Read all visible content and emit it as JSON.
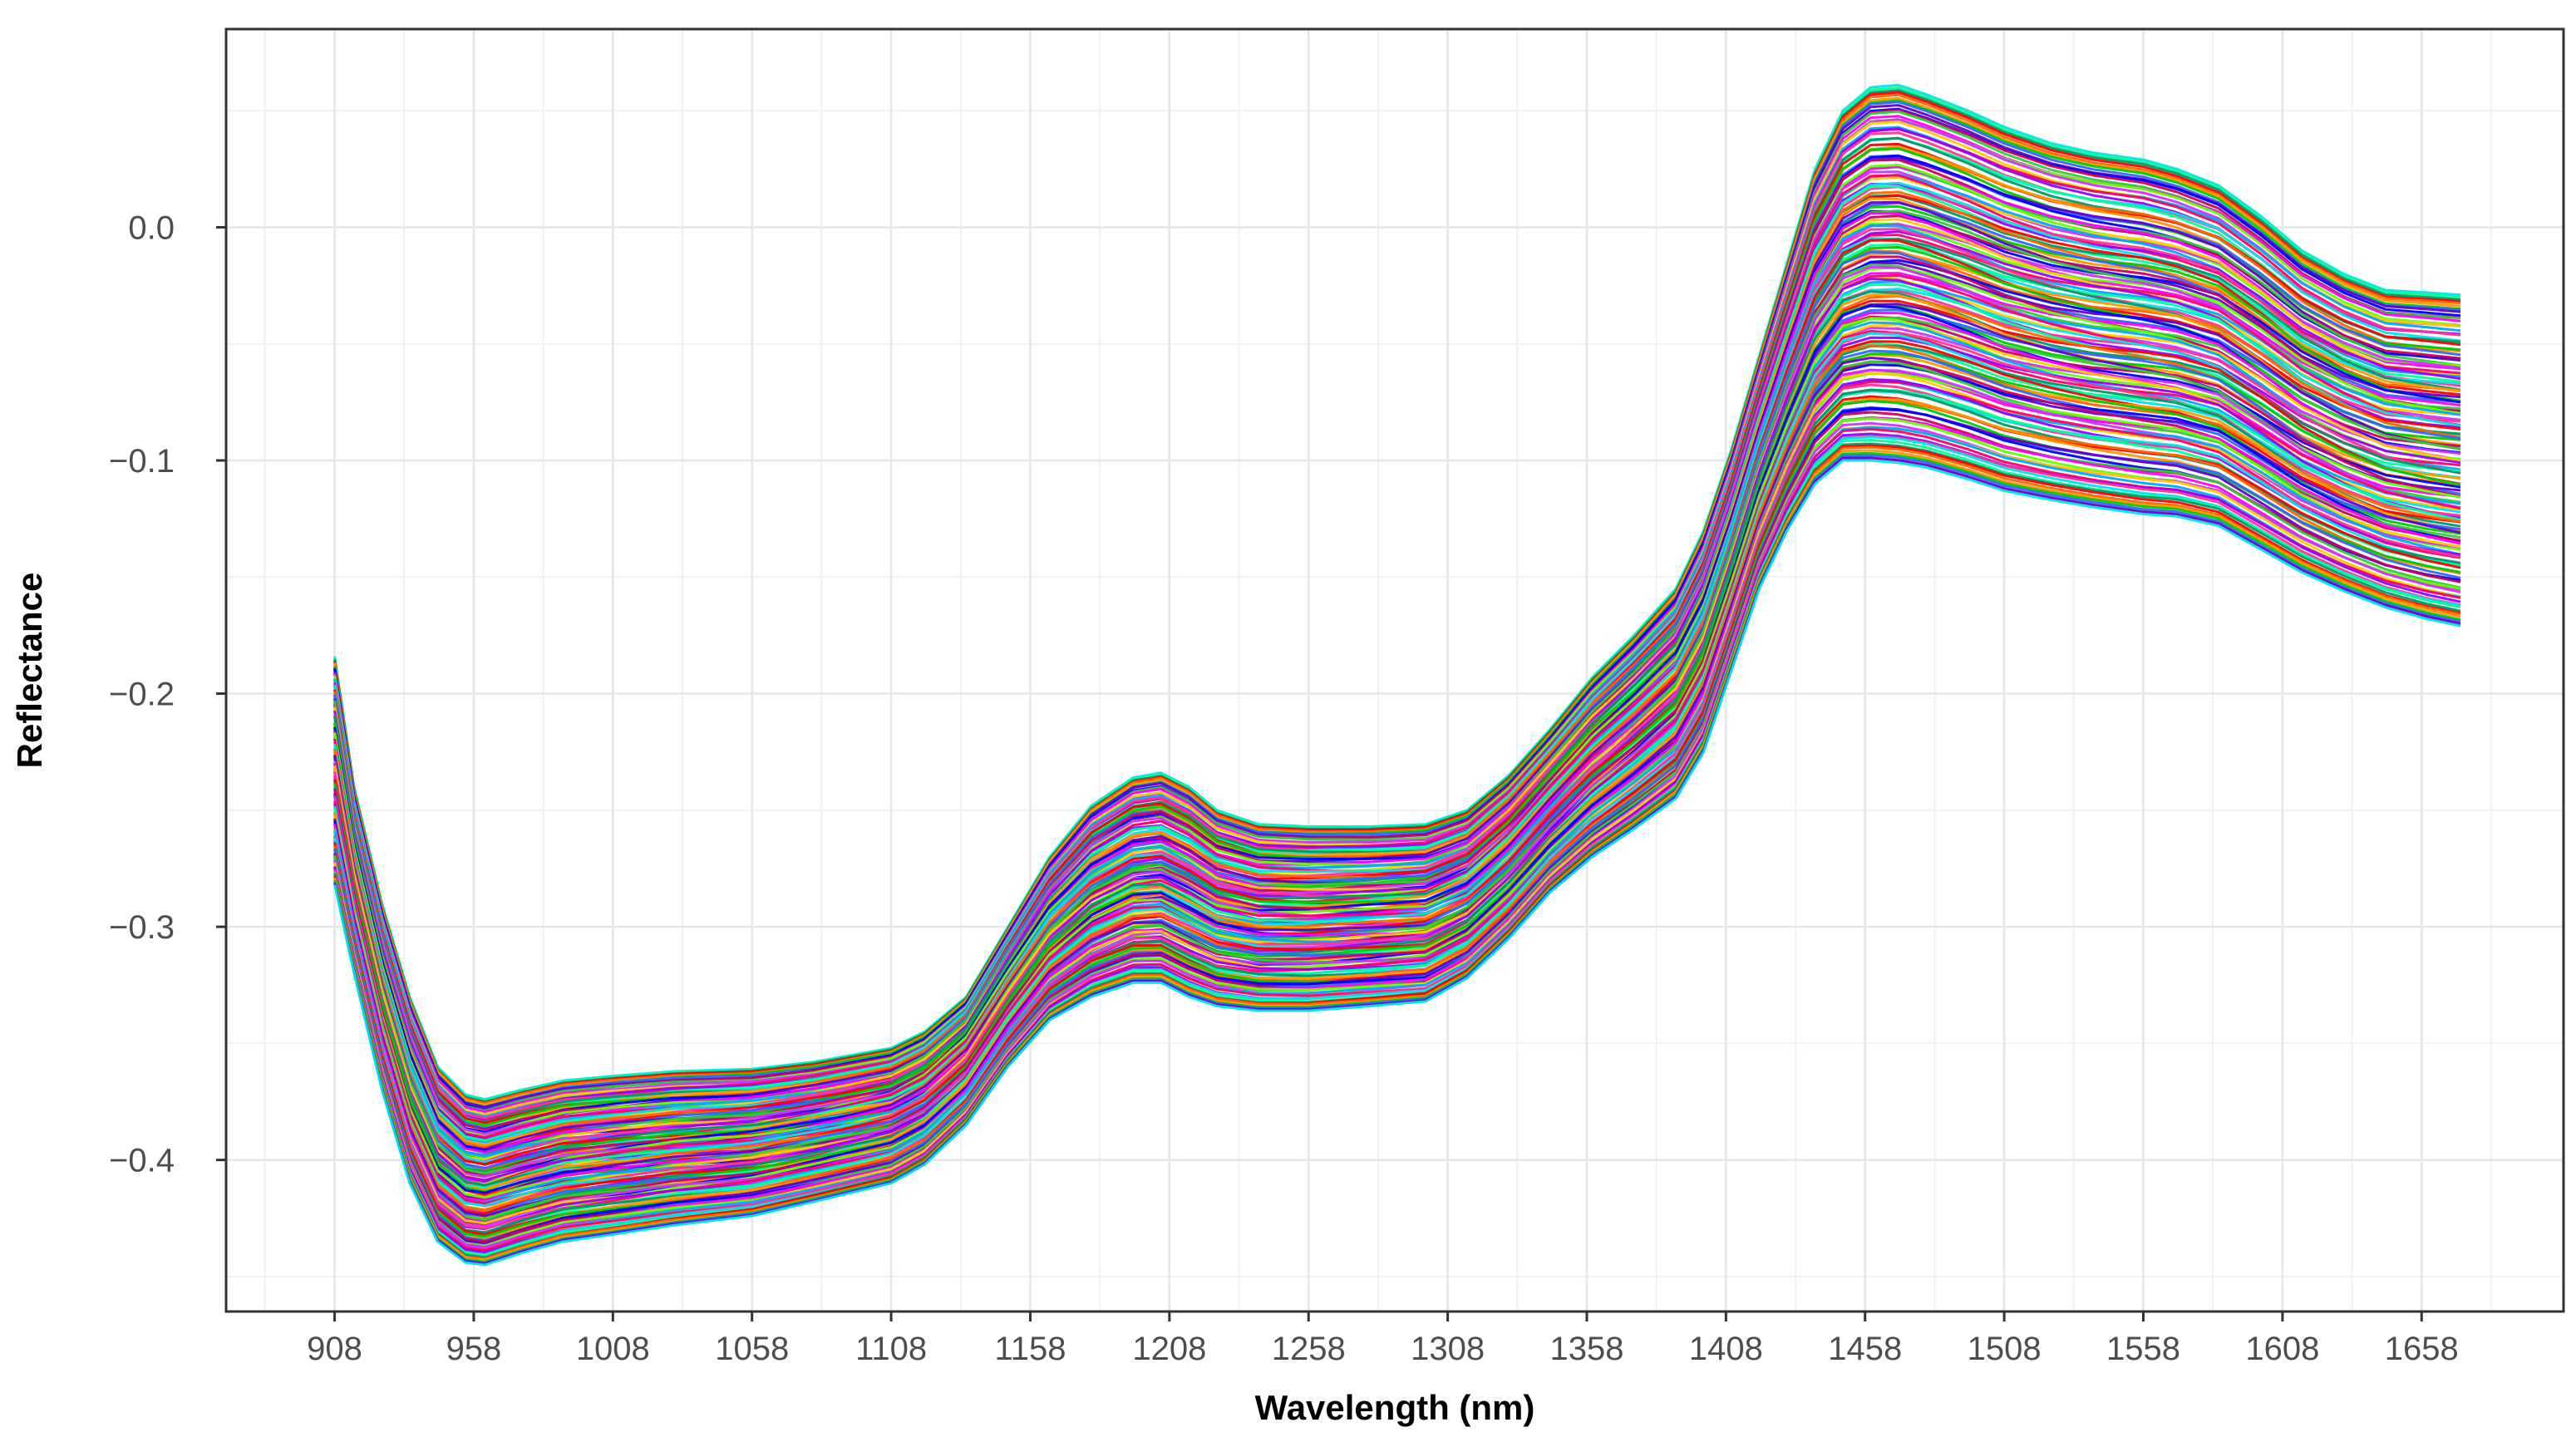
{
  "chart_data": {
    "type": "line",
    "title": "",
    "xlabel": "Wavelength (nm)",
    "ylabel": "Reflectance",
    "xlim": [
      869,
      1709
    ],
    "ylim": [
      -0.465,
      0.085
    ],
    "x_ticks": [
      908,
      958,
      1008,
      1058,
      1108,
      1158,
      1208,
      1258,
      1308,
      1358,
      1408,
      1458,
      1508,
      1558,
      1608,
      1658
    ],
    "x_tick_labels": [
      "908",
      "958",
      "1008",
      "1058",
      "1108",
      "1158",
      "1208",
      "1258",
      "1308",
      "1358",
      "1408",
      "1458",
      "1508",
      "1558",
      "1608",
      "1658"
    ],
    "y_ticks": [
      0.0,
      -0.1,
      -0.2,
      -0.3,
      -0.4
    ],
    "y_tick_labels": [
      "0.0",
      "−0.1",
      "−0.2",
      "−0.3",
      "−0.4"
    ],
    "grid": true,
    "legend": "none",
    "series_count": 150,
    "upper_envelope": {
      "x": [
        908,
        915,
        925,
        935,
        945,
        955,
        962,
        975,
        990,
        1008,
        1030,
        1058,
        1080,
        1108,
        1120,
        1135,
        1150,
        1165,
        1180,
        1195,
        1205,
        1215,
        1225,
        1240,
        1258,
        1280,
        1300,
        1315,
        1330,
        1345,
        1360,
        1375,
        1390,
        1400,
        1410,
        1420,
        1430,
        1440,
        1450,
        1460,
        1470,
        1480,
        1495,
        1508,
        1525,
        1540,
        1558,
        1570,
        1585,
        1600,
        1615,
        1630,
        1645,
        1660,
        1672
      ],
      "y": [
        -0.184,
        -0.24,
        -0.29,
        -0.33,
        -0.36,
        -0.372,
        -0.374,
        -0.37,
        -0.366,
        -0.364,
        -0.362,
        -0.361,
        -0.358,
        -0.352,
        -0.345,
        -0.33,
        -0.3,
        -0.27,
        -0.248,
        -0.236,
        -0.234,
        -0.24,
        -0.25,
        -0.256,
        -0.257,
        -0.257,
        -0.256,
        -0.25,
        -0.235,
        -0.215,
        -0.193,
        -0.175,
        -0.155,
        -0.13,
        -0.095,
        -0.055,
        -0.015,
        0.025,
        0.05,
        0.06,
        0.061,
        0.057,
        0.05,
        0.043,
        0.036,
        0.032,
        0.029,
        0.025,
        0.018,
        0.005,
        -0.01,
        -0.02,
        -0.027,
        -0.028,
        -0.029
      ]
    },
    "lower_envelope": {
      "x": [
        908,
        915,
        925,
        935,
        945,
        955,
        962,
        975,
        990,
        1008,
        1030,
        1058,
        1080,
        1108,
        1120,
        1135,
        1150,
        1165,
        1180,
        1195,
        1205,
        1215,
        1225,
        1240,
        1258,
        1280,
        1300,
        1315,
        1330,
        1345,
        1360,
        1375,
        1390,
        1400,
        1410,
        1420,
        1430,
        1440,
        1450,
        1460,
        1470,
        1480,
        1495,
        1508,
        1525,
        1540,
        1558,
        1570,
        1585,
        1600,
        1615,
        1630,
        1645,
        1660,
        1672
      ],
      "y": [
        -0.282,
        -0.32,
        -0.37,
        -0.41,
        -0.435,
        -0.444,
        -0.445,
        -0.44,
        -0.435,
        -0.432,
        -0.428,
        -0.424,
        -0.418,
        -0.41,
        -0.402,
        -0.385,
        -0.36,
        -0.34,
        -0.33,
        -0.324,
        -0.324,
        -0.33,
        -0.334,
        -0.336,
        -0.336,
        -0.334,
        -0.332,
        -0.322,
        -0.305,
        -0.285,
        -0.27,
        -0.258,
        -0.245,
        -0.225,
        -0.19,
        -0.155,
        -0.13,
        -0.11,
        -0.1,
        -0.1,
        -0.101,
        -0.103,
        -0.108,
        -0.113,
        -0.117,
        -0.12,
        -0.123,
        -0.124,
        -0.128,
        -0.138,
        -0.148,
        -0.156,
        -0.163,
        -0.168,
        -0.171
      ]
    },
    "colors": [
      "#00e5e5",
      "#ff0000",
      "#00cc00",
      "#0000ff",
      "#ff00ff",
      "#ffcc00",
      "#9900ff",
      "#00ff99",
      "#ff6600",
      "#3366ff",
      "#cc0066",
      "#66ff00",
      "#00aaff",
      "#ff3399",
      "#009966",
      "#ff9900",
      "#6600cc",
      "#33cc33",
      "#cc33ff",
      "#ff0066"
    ]
  }
}
